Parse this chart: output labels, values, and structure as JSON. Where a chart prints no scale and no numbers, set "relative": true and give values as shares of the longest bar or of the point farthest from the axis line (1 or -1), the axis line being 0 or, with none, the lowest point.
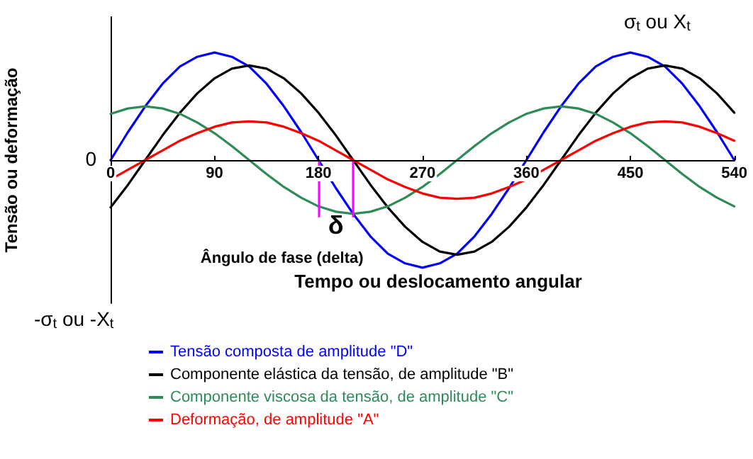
{
  "chart_data": {
    "type": "line",
    "relative": true,
    "xlabel": "Tempo ou deslocamento angular",
    "ylabel": "Tensão ou deformação",
    "x": [
      0,
      15,
      30,
      45,
      60,
      75,
      90,
      105,
      120,
      135,
      150,
      165,
      180,
      195,
      210,
      225,
      240,
      255,
      270,
      285,
      300,
      315,
      330,
      345,
      360,
      375,
      390,
      405,
      420,
      435,
      450,
      465,
      480,
      495,
      510,
      525,
      540
    ],
    "xlim": [
      0,
      540
    ],
    "xticks": [
      0,
      90,
      180,
      270,
      360,
      450,
      540
    ],
    "series": [
      {
        "name": "Tensão composta de amplitude \"D\"",
        "color": "#0000ff",
        "values": [
          0,
          0.26,
          0.5,
          0.71,
          0.87,
          0.96,
          1,
          0.96,
          0.87,
          0.71,
          0.5,
          0.26,
          0,
          -0.26,
          -0.5,
          -0.71,
          -0.87,
          -0.96,
          -1,
          -0.96,
          -0.87,
          -0.71,
          -0.5,
          -0.26,
          0,
          0.26,
          0.5,
          0.71,
          0.87,
          0.96,
          1,
          0.96,
          0.87,
          0.71,
          0.5,
          0.26,
          0
        ]
      },
      {
        "name": "Componente elástica da tensão, de amplitude \"B\"",
        "color": "#000000",
        "values": [
          -0.44,
          -0.23,
          0,
          0.23,
          0.44,
          0.62,
          0.76,
          0.85,
          0.88,
          0.85,
          0.76,
          0.62,
          0.44,
          0.23,
          0,
          -0.23,
          -0.44,
          -0.62,
          -0.76,
          -0.85,
          -0.88,
          -0.85,
          -0.76,
          -0.62,
          -0.44,
          -0.23,
          0,
          0.23,
          0.44,
          0.62,
          0.76,
          0.85,
          0.88,
          0.85,
          0.76,
          0.62,
          0.44
        ]
      },
      {
        "name": "Componente viscosa da tensão, de amplitude \"C\"",
        "color": "#2e8b57",
        "values": [
          0.43,
          0.48,
          0.5,
          0.48,
          0.43,
          0.35,
          0.25,
          0.13,
          0,
          -0.13,
          -0.25,
          -0.35,
          -0.43,
          -0.48,
          -0.5,
          -0.48,
          -0.43,
          -0.35,
          -0.25,
          -0.13,
          0,
          0.13,
          0.25,
          0.35,
          0.43,
          0.48,
          0.5,
          0.48,
          0.43,
          0.35,
          0.25,
          0.13,
          0,
          -0.13,
          -0.25,
          -0.35,
          -0.43
        ]
      },
      {
        "name": "Deformação, de amplitude \"A\"",
        "color": "#ff0000",
        "values": [
          -0.18,
          -0.09,
          0,
          0.09,
          0.18,
          0.25,
          0.31,
          0.35,
          0.36,
          0.35,
          0.31,
          0.25,
          0.18,
          0.09,
          0,
          -0.09,
          -0.18,
          -0.25,
          -0.31,
          -0.35,
          -0.36,
          -0.35,
          -0.31,
          -0.25,
          -0.18,
          -0.09,
          0,
          0.09,
          0.18,
          0.25,
          0.31,
          0.35,
          0.36,
          0.35,
          0.31,
          0.25,
          0.18
        ]
      }
    ],
    "annotations": [
      "σ$_{t}$ ou X$_{t}$",
      "0",
      "-σ$_{t}$ ou -X$_{t}$",
      "δ",
      "Ângulo de fase (delta)"
    ],
    "ref_lines": [
      {
        "axis": "x",
        "value": 180,
        "color": "#ff00ff"
      },
      {
        "axis": "x",
        "value": 210,
        "color": "#ff00ff"
      }
    ],
    "legend": "bottom",
    "grid": false,
    "marker": "none",
    "line_style": "solid"
  }
}
